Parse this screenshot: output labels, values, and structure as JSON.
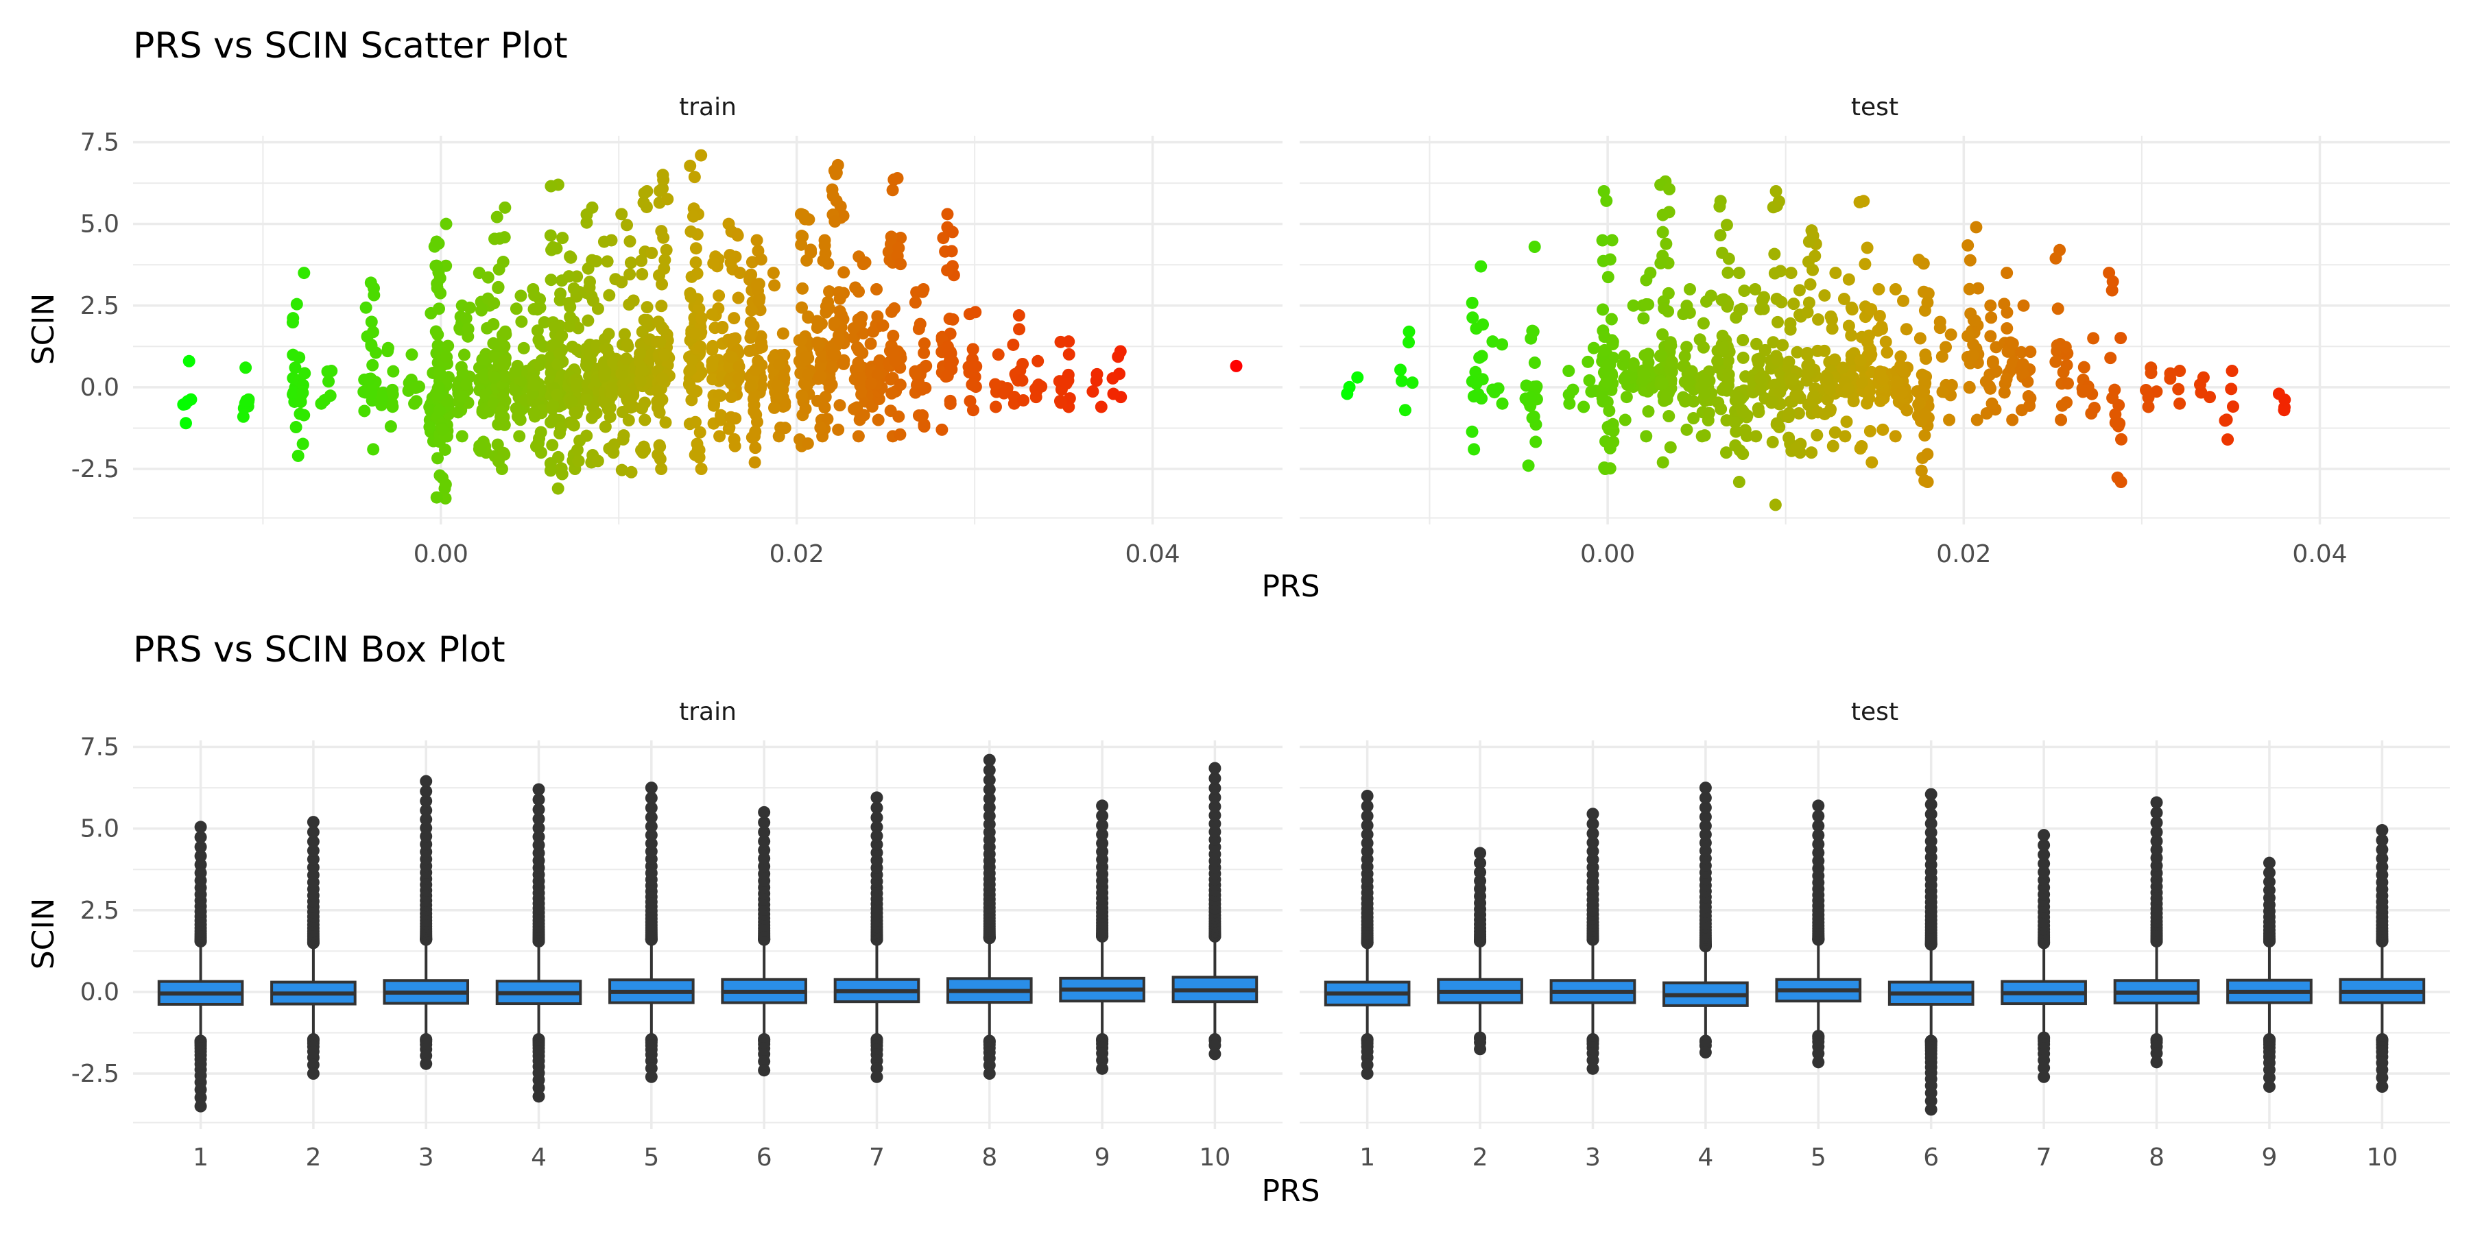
{
  "chart_data": [
    {
      "type": "scatter",
      "title": "PRS vs SCIN Scatter Plot",
      "xlabel": "PRS",
      "ylabel": "SCIN",
      "xlim": [
        -0.0173,
        0.0473
      ],
      "ylim": [
        -4.2,
        7.7
      ],
      "x_ticks": [
        0.0,
        0.02,
        0.04
      ],
      "x_tick_labels": [
        "0.00",
        "0.02",
        "0.04"
      ],
      "x_minor": [
        -0.01,
        0.01,
        0.03
      ],
      "y_ticks": [
        -2.5,
        0,
        2.5,
        5,
        7.5
      ],
      "y_tick_labels": [
        "-2.5",
        "0.0",
        "2.5",
        "5.0",
        "7.5"
      ],
      "grid": true,
      "legend": "none",
      "color_scale": {
        "low": "#00ff00",
        "mid": "#c8a000",
        "high": "#ff0000",
        "domain": [
          -0.015,
          0.045
        ]
      },
      "panels": [
        {
          "name": "train",
          "clusters": [
            {
              "x": -0.0142,
              "ymin": -1.1,
              "ymax": 0.8,
              "n": 6
            },
            {
              "x": -0.011,
              "ymin": -0.9,
              "ymax": 0.6,
              "n": 8
            },
            {
              "x": -0.008,
              "ymin": -2.1,
              "ymax": 3.5,
              "n": 24
            },
            {
              "x": -0.0065,
              "ymin": -0.5,
              "ymax": 0.5,
              "n": 6
            },
            {
              "x": -0.004,
              "ymin": -1.9,
              "ymax": 3.2,
              "n": 30
            },
            {
              "x": -0.003,
              "ymin": -1.2,
              "ymax": 1.2,
              "n": 12
            },
            {
              "x": -0.0015,
              "ymin": -0.5,
              "ymax": 1.0,
              "n": 8
            },
            {
              "x": -0.0003,
              "ymin": -2.7,
              "ymax": 4.4,
              "n": 40
            },
            {
              "x": 0.0001,
              "ymin": -3.4,
              "ymax": 5.0,
              "n": 70
            },
            {
              "x": 0.0013,
              "ymin": -1.5,
              "ymax": 2.5,
              "n": 35
            },
            {
              "x": 0.0025,
              "ymin": -2.0,
              "ymax": 3.5,
              "n": 50
            },
            {
              "x": 0.0033,
              "ymin": -2.5,
              "ymax": 5.5,
              "n": 80
            },
            {
              "x": 0.0045,
              "ymin": -1.5,
              "ymax": 2.8,
              "n": 35
            },
            {
              "x": 0.0055,
              "ymin": -2.0,
              "ymax": 3.0,
              "n": 45
            },
            {
              "x": 0.0065,
              "ymin": -3.1,
              "ymax": 6.2,
              "n": 80
            },
            {
              "x": 0.0075,
              "ymin": -2.5,
              "ymax": 4.0,
              "n": 55
            },
            {
              "x": 0.0085,
              "ymin": -2.3,
              "ymax": 5.5,
              "n": 60
            },
            {
              "x": 0.0095,
              "ymin": -2.0,
              "ymax": 4.5,
              "n": 60
            },
            {
              "x": 0.0105,
              "ymin": -2.6,
              "ymax": 5.3,
              "n": 60
            },
            {
              "x": 0.0115,
              "ymin": -2.0,
              "ymax": 6.0,
              "n": 55
            },
            {
              "x": 0.0125,
              "ymin": -2.5,
              "ymax": 6.5,
              "n": 60
            },
            {
              "x": 0.0143,
              "ymin": -2.5,
              "ymax": 7.1,
              "n": 80
            },
            {
              "x": 0.0155,
              "ymin": -1.5,
              "ymax": 4.0,
              "n": 40
            },
            {
              "x": 0.0165,
              "ymin": -1.8,
              "ymax": 5.0,
              "n": 50
            },
            {
              "x": 0.0177,
              "ymin": -2.3,
              "ymax": 4.5,
              "n": 55
            },
            {
              "x": 0.019,
              "ymin": -1.5,
              "ymax": 3.5,
              "n": 40
            },
            {
              "x": 0.0205,
              "ymin": -1.8,
              "ymax": 5.3,
              "n": 50
            },
            {
              "x": 0.0215,
              "ymin": -1.5,
              "ymax": 4.5,
              "n": 40
            },
            {
              "x": 0.0223,
              "ymin": -1.3,
              "ymax": 6.8,
              "n": 45
            },
            {
              "x": 0.0235,
              "ymin": -1.5,
              "ymax": 4.0,
              "n": 40
            },
            {
              "x": 0.0245,
              "ymin": -1.0,
              "ymax": 3.0,
              "n": 30
            },
            {
              "x": 0.0255,
              "ymin": -1.5,
              "ymax": 6.4,
              "n": 40
            },
            {
              "x": 0.027,
              "ymin": -1.2,
              "ymax": 3.0,
              "n": 30
            },
            {
              "x": 0.0285,
              "ymin": -1.3,
              "ymax": 5.3,
              "n": 35
            },
            {
              "x": 0.03,
              "ymin": -0.7,
              "ymax": 2.3,
              "n": 15
            },
            {
              "x": 0.0315,
              "ymin": -0.6,
              "ymax": 1.0,
              "n": 10
            },
            {
              "x": 0.0325,
              "ymin": -0.5,
              "ymax": 2.2,
              "n": 12
            },
            {
              "x": 0.0335,
              "ymin": -0.3,
              "ymax": 0.8,
              "n": 6
            },
            {
              "x": 0.035,
              "ymin": -0.6,
              "ymax": 1.4,
              "n": 14
            },
            {
              "x": 0.0368,
              "ymin": -0.6,
              "ymax": 0.4,
              "n": 4
            },
            {
              "x": 0.038,
              "ymin": -0.3,
              "ymax": 1.1,
              "n": 6
            },
            {
              "x": 0.0447,
              "ymin": 0.65,
              "ymax": 0.65,
              "n": 1
            }
          ]
        },
        {
          "name": "test",
          "clusters": [
            {
              "x": -0.0143,
              "ymin": -0.2,
              "ymax": 0.3,
              "n": 3
            },
            {
              "x": -0.0113,
              "ymin": -0.7,
              "ymax": 1.7,
              "n": 6
            },
            {
              "x": -0.0073,
              "ymin": -1.9,
              "ymax": 3.7,
              "n": 16
            },
            {
              "x": -0.0062,
              "ymin": -0.5,
              "ymax": 1.4,
              "n": 6
            },
            {
              "x": -0.0043,
              "ymin": -2.4,
              "ymax": 4.3,
              "n": 20
            },
            {
              "x": -0.0023,
              "ymin": -0.5,
              "ymax": 0.5,
              "n": 4
            },
            {
              "x": -0.001,
              "ymin": -0.6,
              "ymax": 1.2,
              "n": 6
            },
            {
              "x": 0.0,
              "ymin": -2.5,
              "ymax": 6.0,
              "n": 50
            },
            {
              "x": 0.0012,
              "ymin": -1.0,
              "ymax": 2.5,
              "n": 20
            },
            {
              "x": 0.0023,
              "ymin": -1.5,
              "ymax": 3.5,
              "n": 30
            },
            {
              "x": 0.0033,
              "ymin": -2.3,
              "ymax": 6.3,
              "n": 55
            },
            {
              "x": 0.0045,
              "ymin": -1.3,
              "ymax": 3.0,
              "n": 25
            },
            {
              "x": 0.0055,
              "ymin": -1.5,
              "ymax": 2.8,
              "n": 25
            },
            {
              "x": 0.0065,
              "ymin": -2.0,
              "ymax": 5.7,
              "n": 45
            },
            {
              "x": 0.0075,
              "ymin": -2.9,
              "ymax": 3.5,
              "n": 35
            },
            {
              "x": 0.0085,
              "ymin": -1.5,
              "ymax": 3.0,
              "n": 30
            },
            {
              "x": 0.0095,
              "ymin": -3.6,
              "ymax": 6.0,
              "n": 40
            },
            {
              "x": 0.0105,
              "ymin": -2.0,
              "ymax": 3.5,
              "n": 35
            },
            {
              "x": 0.0115,
              "ymin": -2.0,
              "ymax": 4.8,
              "n": 35
            },
            {
              "x": 0.0125,
              "ymin": -1.8,
              "ymax": 3.5,
              "n": 30
            },
            {
              "x": 0.0135,
              "ymin": -1.5,
              "ymax": 3.3,
              "n": 30
            },
            {
              "x": 0.0145,
              "ymin": -2.3,
              "ymax": 5.7,
              "n": 35
            },
            {
              "x": 0.0155,
              "ymin": -1.3,
              "ymax": 3.0,
              "n": 25
            },
            {
              "x": 0.0165,
              "ymin": -1.5,
              "ymax": 3.0,
              "n": 25
            },
            {
              "x": 0.0177,
              "ymin": -2.9,
              "ymax": 3.9,
              "n": 35
            },
            {
              "x": 0.019,
              "ymin": -1.0,
              "ymax": 2.0,
              "n": 15
            },
            {
              "x": 0.0205,
              "ymin": -1.0,
              "ymax": 4.9,
              "n": 25
            },
            {
              "x": 0.0215,
              "ymin": -0.8,
              "ymax": 2.5,
              "n": 15
            },
            {
              "x": 0.0225,
              "ymin": -1.0,
              "ymax": 3.5,
              "n": 20
            },
            {
              "x": 0.0235,
              "ymin": -0.7,
              "ymax": 2.5,
              "n": 15
            },
            {
              "x": 0.0255,
              "ymin": -1.0,
              "ymax": 4.2,
              "n": 20
            },
            {
              "x": 0.027,
              "ymin": -0.8,
              "ymax": 1.5,
              "n": 10
            },
            {
              "x": 0.0285,
              "ymin": -2.9,
              "ymax": 3.5,
              "n": 15
            },
            {
              "x": 0.0305,
              "ymin": -0.6,
              "ymax": 0.6,
              "n": 6
            },
            {
              "x": 0.0318,
              "ymin": -0.5,
              "ymax": 0.5,
              "n": 5
            },
            {
              "x": 0.0335,
              "ymin": -0.3,
              "ymax": 0.3,
              "n": 4
            },
            {
              "x": 0.035,
              "ymin": -1.6,
              "ymax": 0.5,
              "n": 6
            },
            {
              "x": 0.038,
              "ymin": -0.7,
              "ymax": -0.2,
              "n": 4
            }
          ]
        }
      ]
    },
    {
      "type": "box",
      "title": "PRS vs SCIN Box Plot",
      "xlabel": "PRS",
      "ylabel": "SCIN",
      "categories": [
        "1",
        "2",
        "3",
        "4",
        "5",
        "6",
        "7",
        "8",
        "9",
        "10"
      ],
      "ylim": [
        -4.2,
        7.7
      ],
      "y_ticks": [
        -2.5,
        0,
        2.5,
        5,
        7.5
      ],
      "y_tick_labels": [
        "-2.5",
        "0.0",
        "2.5",
        "5.0",
        "7.5"
      ],
      "grid": true,
      "legend": "none",
      "fill_color": "#2a8ee8",
      "line_color": "#333333",
      "panels": [
        {
          "name": "train",
          "boxes": [
            {
              "q1": -0.38,
              "median": -0.05,
              "q3": 0.32,
              "wlo": -1.4,
              "whi": 1.45,
              "out_lo": -3.5,
              "out_hi": 5.05
            },
            {
              "q1": -0.37,
              "median": -0.05,
              "q3": 0.3,
              "wlo": -1.35,
              "whi": 1.4,
              "out_lo": -2.5,
              "out_hi": 5.2
            },
            {
              "q1": -0.35,
              "median": -0.02,
              "q3": 0.35,
              "wlo": -1.35,
              "whi": 1.5,
              "out_lo": -2.2,
              "out_hi": 6.45
            },
            {
              "q1": -0.36,
              "median": -0.04,
              "q3": 0.33,
              "wlo": -1.35,
              "whi": 1.45,
              "out_lo": -3.2,
              "out_hi": 6.2
            },
            {
              "q1": -0.33,
              "median": 0.0,
              "q3": 0.37,
              "wlo": -1.35,
              "whi": 1.5,
              "out_lo": -2.6,
              "out_hi": 6.25
            },
            {
              "q1": -0.33,
              "median": 0.0,
              "q3": 0.38,
              "wlo": -1.35,
              "whi": 1.5,
              "out_lo": -2.4,
              "out_hi": 5.5
            },
            {
              "q1": -0.3,
              "median": 0.02,
              "q3": 0.38,
              "wlo": -1.35,
              "whi": 1.5,
              "out_lo": -2.6,
              "out_hi": 5.95
            },
            {
              "q1": -0.32,
              "median": 0.03,
              "q3": 0.41,
              "wlo": -1.4,
              "whi": 1.55,
              "out_lo": -2.5,
              "out_hi": 7.1
            },
            {
              "q1": -0.28,
              "median": 0.07,
              "q3": 0.42,
              "wlo": -1.35,
              "whi": 1.6,
              "out_lo": -2.35,
              "out_hi": 5.7
            },
            {
              "q1": -0.3,
              "median": 0.05,
              "q3": 0.45,
              "wlo": -1.35,
              "whi": 1.6,
              "out_lo": -1.9,
              "out_hi": 6.85
            }
          ]
        },
        {
          "name": "test",
          "boxes": [
            {
              "q1": -0.4,
              "median": -0.05,
              "q3": 0.3,
              "wlo": -1.35,
              "whi": 1.4,
              "out_lo": -2.5,
              "out_hi": 6.0
            },
            {
              "q1": -0.33,
              "median": 0.0,
              "q3": 0.38,
              "wlo": -1.3,
              "whi": 1.45,
              "out_lo": -1.75,
              "out_hi": 4.25
            },
            {
              "q1": -0.33,
              "median": 0.0,
              "q3": 0.35,
              "wlo": -1.35,
              "whi": 1.5,
              "out_lo": -2.35,
              "out_hi": 5.45
            },
            {
              "q1": -0.42,
              "median": -0.1,
              "q3": 0.28,
              "wlo": -1.4,
              "whi": 1.3,
              "out_lo": -1.85,
              "out_hi": 6.25
            },
            {
              "q1": -0.28,
              "median": 0.05,
              "q3": 0.38,
              "wlo": -1.25,
              "whi": 1.5,
              "out_lo": -2.15,
              "out_hi": 5.7
            },
            {
              "q1": -0.38,
              "median": -0.05,
              "q3": 0.3,
              "wlo": -1.4,
              "whi": 1.35,
              "out_lo": -3.6,
              "out_hi": 6.05
            },
            {
              "q1": -0.36,
              "median": -0.04,
              "q3": 0.32,
              "wlo": -1.3,
              "whi": 1.4,
              "out_lo": -2.6,
              "out_hi": 4.8
            },
            {
              "q1": -0.34,
              "median": -0.02,
              "q3": 0.35,
              "wlo": -1.35,
              "whi": 1.45,
              "out_lo": -2.15,
              "out_hi": 5.8
            },
            {
              "q1": -0.33,
              "median": 0.0,
              "q3": 0.36,
              "wlo": -1.35,
              "whi": 1.45,
              "out_lo": -2.9,
              "out_hi": 3.95
            },
            {
              "q1": -0.33,
              "median": 0.0,
              "q3": 0.38,
              "wlo": -1.35,
              "whi": 1.45,
              "out_lo": -2.9,
              "out_hi": 4.95
            }
          ]
        }
      ]
    }
  ]
}
